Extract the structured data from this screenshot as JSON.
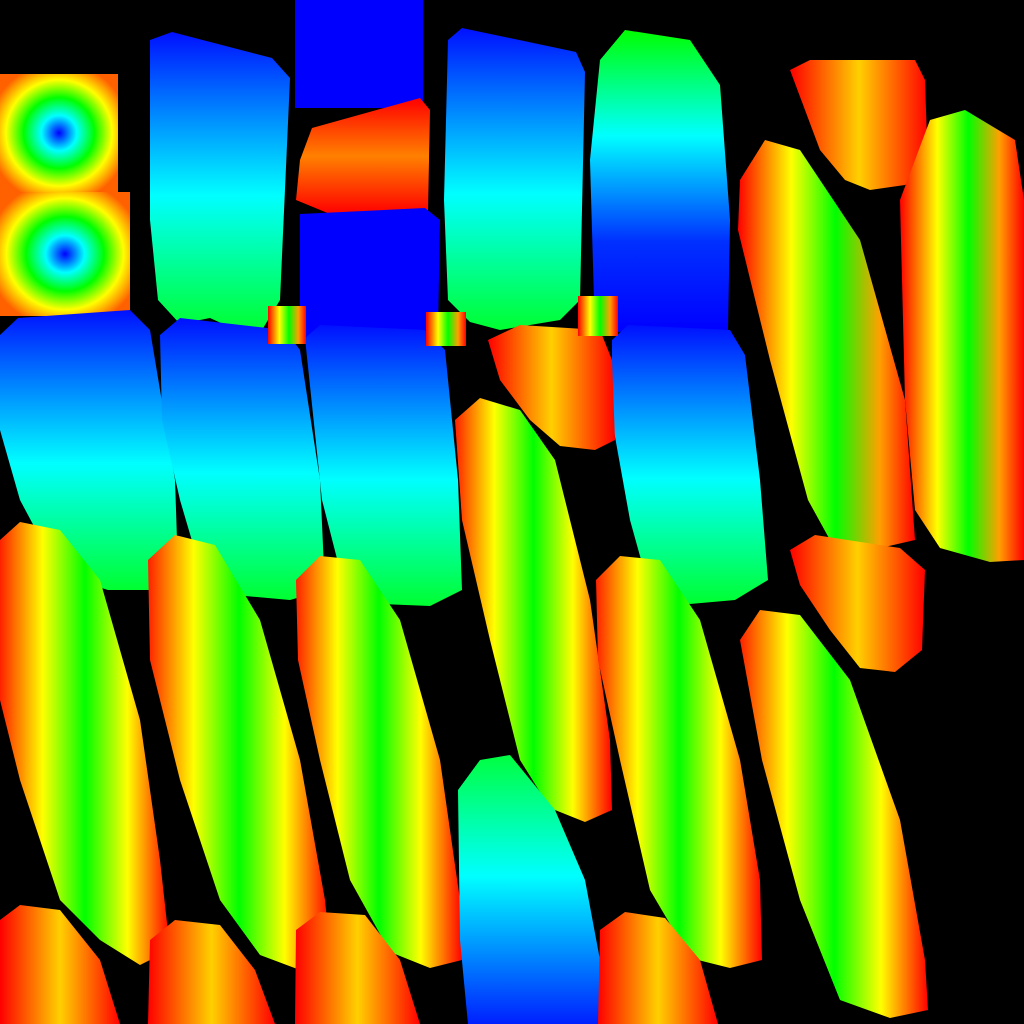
{
  "scene": {
    "background": "#000000",
    "palette": {
      "blue": "#0000ff",
      "cyan": "#00ffff",
      "green": "#00ff00",
      "yellow": "#ffff00",
      "orange": "#ff8c00",
      "red": "#ff0000"
    },
    "description_visible_text": ""
  }
}
